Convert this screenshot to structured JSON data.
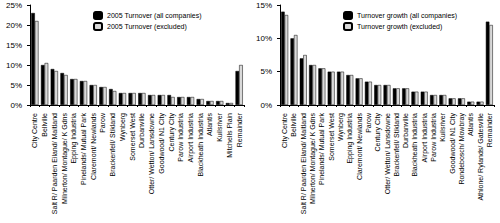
{
  "chart_data": [
    {
      "type": "bar",
      "categories": [
        "City Centre",
        "Bellville",
        "Salt R/ Paarden Eiland/ Maitland",
        "Milnerton/ Montague/ K Gdns",
        "Epping Industria",
        "Pinelands/ Mutual Park",
        "Claremont/ Newlands",
        "Parow",
        "Brackenfell/ Stikland",
        "Wynberg",
        "Somerset West",
        "Durbanville",
        "Otter/ Wetton/ Lansdowne",
        "Goodwood/ N1 City",
        "Century City",
        "Parow Industria",
        "Airport Industria",
        "Blackheath Industria",
        "Atlantis",
        "Kuilsriver",
        "Mitchells Plain",
        "Remainder"
      ],
      "series": [
        {
          "name": "2005 Turnover (all companies)",
          "color": "#000000",
          "values": [
            23,
            10,
            9,
            8,
            6.5,
            6,
            5,
            4.5,
            4,
            3,
            3,
            3,
            2.5,
            2.5,
            2.5,
            2,
            2,
            1.5,
            1,
            1,
            0.5,
            8.5
          ]
        },
        {
          "name": "2005 Turnover (excluded)",
          "color": "#d9d9d9",
          "values": [
            21,
            10.5,
            8.5,
            7.5,
            6.5,
            6,
            5,
            4.5,
            3.5,
            3,
            3,
            3,
            2.5,
            2.5,
            2,
            2,
            2,
            1.5,
            1,
            1,
            0.5,
            10
          ]
        }
      ],
      "ylim": [
        0,
        25
      ],
      "yticks": [
        {
          "value": 0,
          "label": "0%"
        },
        {
          "value": 5,
          "label": "5%"
        },
        {
          "value": 10,
          "label": "10%"
        },
        {
          "value": 15,
          "label": "15%"
        },
        {
          "value": 20,
          "label": "20%"
        },
        {
          "value": 25,
          "label": "25%"
        }
      ],
      "grid": false,
      "legend": "top-right"
    },
    {
      "type": "bar",
      "categories": [
        "City Centre",
        "Bellville",
        "Salt R/ Paarden Eiland/ Maitland",
        "Milnerton/ Montague/ K Gdns",
        "Pinelands/ Mutual Park",
        "Somerset West",
        "Wynberg",
        "Epping Industria",
        "Claremont/ Newlands",
        "Parow",
        "Century City",
        "Otter/ Wetton/ Lansdowne",
        "Brackenfell/ Stikland",
        "Durbanville",
        "Blackheath Industria",
        "Airport Industria",
        "Parow Industria",
        "Kuilsriver",
        "Goodwood/ N1 City",
        "Rondebosch/ Mowbray",
        "Atlantis",
        "Athlone/ Rylands/ Gatesville",
        "Remainder"
      ],
      "series": [
        {
          "name": "Turnover growth (all companies)",
          "color": "#000000",
          "values": [
            14,
            10,
            7,
            6,
            5.5,
            5,
            5,
            4.5,
            4,
            3.5,
            3,
            3,
            2.5,
            2.5,
            2,
            2,
            1.5,
            1.5,
            1,
            1,
            0.5,
            0.5,
            12.5
          ]
        },
        {
          "name": "Turnover growth (excluded)",
          "color": "#d9d9d9",
          "values": [
            13.5,
            10.5,
            7.5,
            6,
            5.5,
            5,
            5,
            4.5,
            4,
            3.5,
            3,
            3,
            2.5,
            2.5,
            2,
            2,
            1.5,
            1.5,
            1,
            1,
            0.5,
            0.5,
            12
          ]
        }
      ],
      "ylim": [
        0,
        15
      ],
      "yticks": [
        {
          "value": 0,
          "label": "0%"
        },
        {
          "value": 5,
          "label": "5%"
        },
        {
          "value": 10,
          "label": "10%"
        },
        {
          "value": 15,
          "label": "15%"
        }
      ],
      "grid": false,
      "legend": "top-right"
    }
  ]
}
